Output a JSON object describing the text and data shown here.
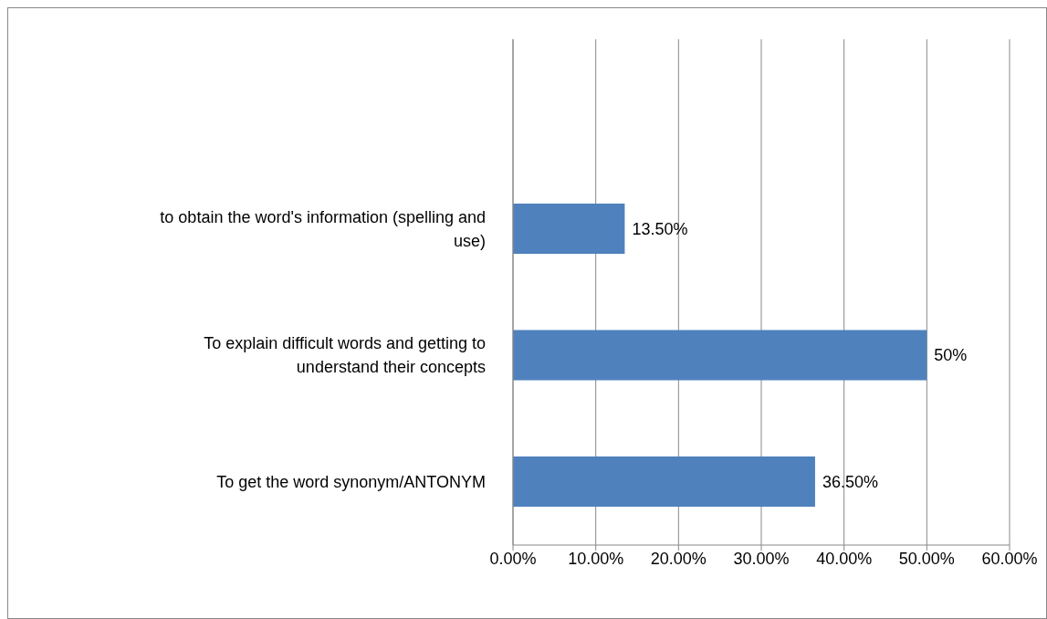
{
  "chart_data": {
    "type": "bar",
    "orientation": "horizontal",
    "categories": [
      null,
      "to obtain the word's information (spelling and use)",
      "To explain difficult words and getting to understand their concepts",
      "To get the word synonym/ANTONYM"
    ],
    "values": [
      null,
      13.5,
      50,
      36.5
    ],
    "value_labels": [
      null,
      "13.50%",
      "50%",
      "36.50%"
    ],
    "color": "#4f81bd",
    "xlim": [
      0,
      60
    ],
    "xticks": [
      {
        "value": 0,
        "label": "0.00%"
      },
      {
        "value": 10,
        "label": "10.00%"
      },
      {
        "value": 20,
        "label": "20.00%"
      },
      {
        "value": 30,
        "label": "30.00%"
      },
      {
        "value": 40,
        "label": "40.00%"
      },
      {
        "value": 50,
        "label": "50.00%"
      },
      {
        "value": 60,
        "label": "60.00%"
      }
    ],
    "grid": "x"
  }
}
